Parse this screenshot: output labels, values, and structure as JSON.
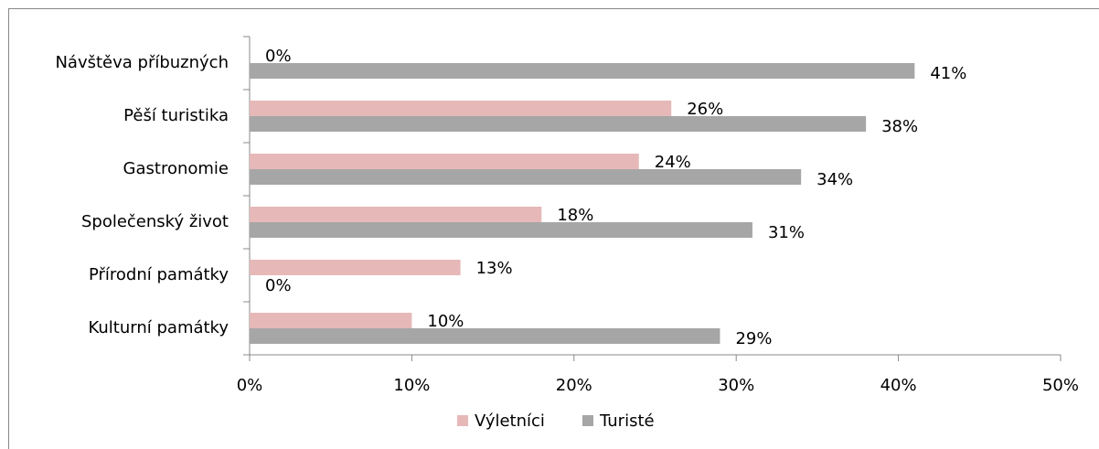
{
  "chart_data": {
    "type": "bar",
    "orientation": "horizontal",
    "categories": [
      "Návštěva příbuzných",
      "Pěší turistika",
      "Gastronomie",
      "Společenský život",
      "Přírodní památky",
      "Kulturní památky"
    ],
    "series": [
      {
        "name": "Výletníci",
        "color": "#e6b9b8",
        "values": [
          0,
          26,
          24,
          18,
          13,
          10
        ],
        "value_labels": [
          "0%",
          "26%",
          "24%",
          "18%",
          "13%",
          "10%"
        ]
      },
      {
        "name": "Turisté",
        "color": "#a6a6a6",
        "values": [
          41,
          38,
          34,
          31,
          0,
          29
        ],
        "value_labels": [
          "41%",
          "38%",
          "34%",
          "31%",
          "0%",
          "29%"
        ]
      }
    ],
    "xlim": [
      0,
      50
    ],
    "xticks": [
      {
        "value": 0,
        "label": "0%"
      },
      {
        "value": 10,
        "label": "10%"
      },
      {
        "value": 20,
        "label": "20%"
      },
      {
        "value": 30,
        "label": "30%"
      },
      {
        "value": 40,
        "label": "40%"
      },
      {
        "value": 50,
        "label": "50%"
      }
    ],
    "legend": "bottom",
    "grid": false
  }
}
